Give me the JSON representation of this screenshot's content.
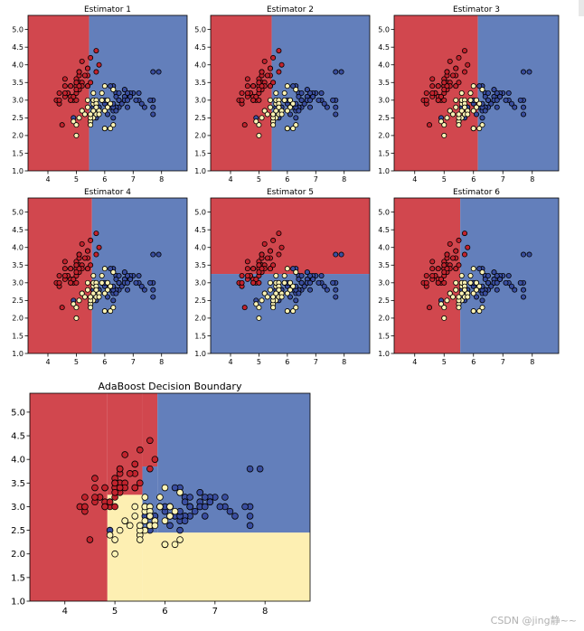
{
  "colors": {
    "region_red": "#d1474e",
    "region_blue": "#637fbb",
    "region_yellow": "#fdefb2",
    "point_red": "#c2232d",
    "point_blue": "#3a4ea0",
    "point_yellow": "#fcf3b5",
    "edge": "#000000"
  },
  "watermark": "CSDN @jing静~~",
  "chart_data": [
    {
      "type": "scatter",
      "title": "Estimator 1",
      "xlim": [
        3.3,
        8.9
      ],
      "ylim": [
        1.0,
        5.4
      ],
      "xticks": [
        4,
        5,
        6,
        7,
        8
      ],
      "yticks": [
        1.0,
        1.5,
        2.0,
        2.5,
        3.0,
        3.5,
        4.0,
        4.5,
        5.0
      ],
      "regions": [
        {
          "class": "red",
          "x": [
            3.3,
            5.45
          ],
          "y": [
            1.0,
            5.4
          ]
        },
        {
          "class": "blue",
          "x": [
            5.45,
            8.9
          ],
          "y": [
            1.0,
            5.4
          ]
        }
      ]
    },
    {
      "type": "scatter",
      "title": "Estimator 2",
      "xlim": [
        3.3,
        8.9
      ],
      "ylim": [
        1.0,
        5.4
      ],
      "xticks": [
        4,
        5,
        6,
        7,
        8
      ],
      "yticks": [
        1.0,
        1.5,
        2.0,
        2.5,
        3.0,
        3.5,
        4.0,
        4.5,
        5.0
      ],
      "regions": [
        {
          "class": "red",
          "x": [
            3.3,
            5.45
          ],
          "y": [
            1.0,
            5.4
          ]
        },
        {
          "class": "blue",
          "x": [
            5.45,
            8.9
          ],
          "y": [
            1.0,
            5.4
          ]
        }
      ]
    },
    {
      "type": "scatter",
      "title": "Estimator 3",
      "xlim": [
        3.3,
        8.9
      ],
      "ylim": [
        1.0,
        5.4
      ],
      "xticks": [
        4,
        5,
        6,
        7,
        8
      ],
      "yticks": [
        1.0,
        1.5,
        2.0,
        2.5,
        3.0,
        3.5,
        4.0,
        4.5,
        5.0
      ],
      "regions": [
        {
          "class": "red",
          "x": [
            3.3,
            6.15
          ],
          "y": [
            1.0,
            5.4
          ]
        },
        {
          "class": "blue",
          "x": [
            6.15,
            8.9
          ],
          "y": [
            1.0,
            5.4
          ]
        }
      ]
    },
    {
      "type": "scatter",
      "title": "Estimator 4",
      "xlim": [
        3.3,
        8.9
      ],
      "ylim": [
        1.0,
        5.4
      ],
      "xticks": [
        4,
        5,
        6,
        7,
        8
      ],
      "yticks": [
        1.0,
        1.5,
        2.0,
        2.5,
        3.0,
        3.5,
        4.0,
        4.5,
        5.0
      ],
      "regions": [
        {
          "class": "red",
          "x": [
            3.3,
            5.55
          ],
          "y": [
            1.0,
            5.4
          ]
        },
        {
          "class": "blue",
          "x": [
            5.55,
            8.9
          ],
          "y": [
            1.0,
            5.4
          ]
        }
      ]
    },
    {
      "type": "scatter",
      "title": "Estimator 5",
      "xlim": [
        3.3,
        8.9
      ],
      "ylim": [
        1.0,
        5.4
      ],
      "xticks": [
        4,
        5,
        6,
        7,
        8
      ],
      "yticks": [
        1.0,
        1.5,
        2.0,
        2.5,
        3.0,
        3.5,
        4.0,
        4.5,
        5.0
      ],
      "regions": [
        {
          "class": "red",
          "x": [
            3.3,
            8.9
          ],
          "y": [
            3.25,
            5.4
          ]
        },
        {
          "class": "blue",
          "x": [
            3.3,
            8.9
          ],
          "y": [
            1.0,
            3.25
          ]
        }
      ]
    },
    {
      "type": "scatter",
      "title": "Estimator 6",
      "xlim": [
        3.3,
        8.9
      ],
      "ylim": [
        1.0,
        5.4
      ],
      "xticks": [
        4,
        5,
        6,
        7,
        8
      ],
      "yticks": [
        1.0,
        1.5,
        2.0,
        2.5,
        3.0,
        3.5,
        4.0,
        4.5,
        5.0
      ],
      "regions": [
        {
          "class": "red",
          "x": [
            3.3,
            5.55
          ],
          "y": [
            1.0,
            5.4
          ]
        },
        {
          "class": "blue",
          "x": [
            5.55,
            8.9
          ],
          "y": [
            1.0,
            5.4
          ]
        }
      ]
    },
    {
      "type": "scatter",
      "title": "AdaBoost Decision Boundary",
      "xlim": [
        3.3,
        8.9
      ],
      "ylim": [
        1.0,
        5.4
      ],
      "xticks": [
        4,
        5,
        6,
        7,
        8
      ],
      "yticks": [
        1.0,
        1.5,
        2.0,
        2.5,
        3.0,
        3.5,
        4.0,
        4.5,
        5.0
      ],
      "regions": [
        {
          "class": "red",
          "x": [
            3.3,
            4.85
          ],
          "y": [
            1.0,
            5.4
          ]
        },
        {
          "class": "red",
          "x": [
            4.85,
            5.55
          ],
          "y": [
            3.25,
            5.4
          ]
        },
        {
          "class": "red",
          "x": [
            5.55,
            5.85
          ],
          "y": [
            3.85,
            5.4
          ]
        },
        {
          "class": "blue",
          "x": [
            5.85,
            8.9
          ],
          "y": [
            2.45,
            5.4
          ]
        },
        {
          "class": "blue",
          "x": [
            5.55,
            5.85
          ],
          "y": [
            2.45,
            3.85
          ]
        },
        {
          "class": "yellow",
          "x": [
            4.85,
            5.55
          ],
          "y": [
            1.0,
            3.25
          ]
        },
        {
          "class": "yellow",
          "x": [
            5.55,
            8.9
          ],
          "y": [
            1.0,
            2.45
          ]
        }
      ]
    }
  ],
  "samples": [
    {
      "x": 5.1,
      "y": 3.5,
      "c": "red"
    },
    {
      "x": 4.9,
      "y": 3.0,
      "c": "red"
    },
    {
      "x": 4.7,
      "y": 3.2,
      "c": "red"
    },
    {
      "x": 4.6,
      "y": 3.1,
      "c": "red"
    },
    {
      "x": 5.0,
      "y": 3.6,
      "c": "red"
    },
    {
      "x": 5.4,
      "y": 3.9,
      "c": "red"
    },
    {
      "x": 4.6,
      "y": 3.4,
      "c": "red"
    },
    {
      "x": 5.0,
      "y": 3.4,
      "c": "red"
    },
    {
      "x": 4.4,
      "y": 2.9,
      "c": "red"
    },
    {
      "x": 4.9,
      "y": 3.1,
      "c": "red"
    },
    {
      "x": 5.4,
      "y": 3.7,
      "c": "red"
    },
    {
      "x": 4.8,
      "y": 3.4,
      "c": "red"
    },
    {
      "x": 4.8,
      "y": 3.0,
      "c": "red"
    },
    {
      "x": 4.3,
      "y": 3.0,
      "c": "red"
    },
    {
      "x": 5.8,
      "y": 4.0,
      "c": "red"
    },
    {
      "x": 5.7,
      "y": 4.4,
      "c": "red"
    },
    {
      "x": 5.4,
      "y": 3.9,
      "c": "red"
    },
    {
      "x": 5.1,
      "y": 3.5,
      "c": "red"
    },
    {
      "x": 5.7,
      "y": 3.8,
      "c": "red"
    },
    {
      "x": 5.1,
      "y": 3.8,
      "c": "red"
    },
    {
      "x": 5.4,
      "y": 3.4,
      "c": "red"
    },
    {
      "x": 5.1,
      "y": 3.7,
      "c": "red"
    },
    {
      "x": 4.6,
      "y": 3.6,
      "c": "red"
    },
    {
      "x": 5.1,
      "y": 3.3,
      "c": "red"
    },
    {
      "x": 4.8,
      "y": 3.4,
      "c": "red"
    },
    {
      "x": 5.0,
      "y": 3.0,
      "c": "red"
    },
    {
      "x": 5.0,
      "y": 3.4,
      "c": "red"
    },
    {
      "x": 5.2,
      "y": 3.5,
      "c": "red"
    },
    {
      "x": 5.2,
      "y": 3.4,
      "c": "red"
    },
    {
      "x": 4.7,
      "y": 3.2,
      "c": "red"
    },
    {
      "x": 4.8,
      "y": 3.1,
      "c": "red"
    },
    {
      "x": 5.4,
      "y": 3.4,
      "c": "red"
    },
    {
      "x": 5.2,
      "y": 4.1,
      "c": "red"
    },
    {
      "x": 5.5,
      "y": 4.2,
      "c": "red"
    },
    {
      "x": 4.9,
      "y": 3.1,
      "c": "red"
    },
    {
      "x": 5.0,
      "y": 3.2,
      "c": "red"
    },
    {
      "x": 5.5,
      "y": 3.5,
      "c": "red"
    },
    {
      "x": 4.4,
      "y": 3.0,
      "c": "red"
    },
    {
      "x": 5.1,
      "y": 3.4,
      "c": "red"
    },
    {
      "x": 5.0,
      "y": 3.5,
      "c": "red"
    },
    {
      "x": 4.5,
      "y": 2.3,
      "c": "red"
    },
    {
      "x": 4.4,
      "y": 3.2,
      "c": "red"
    },
    {
      "x": 5.0,
      "y": 3.5,
      "c": "red"
    },
    {
      "x": 5.1,
      "y": 3.8,
      "c": "red"
    },
    {
      "x": 4.8,
      "y": 3.0,
      "c": "red"
    },
    {
      "x": 5.1,
      "y": 3.8,
      "c": "red"
    },
    {
      "x": 4.6,
      "y": 3.2,
      "c": "red"
    },
    {
      "x": 5.3,
      "y": 3.7,
      "c": "red"
    },
    {
      "x": 5.0,
      "y": 3.3,
      "c": "red"
    },
    {
      "x": 7.0,
      "y": 3.2,
      "c": "blue"
    },
    {
      "x": 6.4,
      "y": 3.2,
      "c": "blue"
    },
    {
      "x": 6.9,
      "y": 3.1,
      "c": "blue"
    },
    {
      "x": 6.5,
      "y": 2.8,
      "c": "blue"
    },
    {
      "x": 6.3,
      "y": 3.3,
      "c": "blue"
    },
    {
      "x": 6.7,
      "y": 3.1,
      "c": "blue"
    },
    {
      "x": 6.1,
      "y": 2.8,
      "c": "blue"
    },
    {
      "x": 6.6,
      "y": 2.9,
      "c": "blue"
    },
    {
      "x": 6.8,
      "y": 2.8,
      "c": "blue"
    },
    {
      "x": 6.7,
      "y": 3.0,
      "c": "blue"
    },
    {
      "x": 6.0,
      "y": 2.9,
      "c": "blue"
    },
    {
      "x": 6.1,
      "y": 3.0,
      "c": "blue"
    },
    {
      "x": 6.3,
      "y": 2.5,
      "c": "blue"
    },
    {
      "x": 5.8,
      "y": 2.8,
      "c": "blue"
    },
    {
      "x": 6.4,
      "y": 3.2,
      "c": "blue"
    },
    {
      "x": 6.5,
      "y": 3.0,
      "c": "blue"
    },
    {
      "x": 7.7,
      "y": 3.8,
      "c": "blue"
    },
    {
      "x": 7.7,
      "y": 2.6,
      "c": "blue"
    },
    {
      "x": 6.0,
      "y": 2.2,
      "c": "blue"
    },
    {
      "x": 6.9,
      "y": 3.2,
      "c": "blue"
    },
    {
      "x": 5.6,
      "y": 2.8,
      "c": "blue"
    },
    {
      "x": 7.7,
      "y": 2.8,
      "c": "blue"
    },
    {
      "x": 6.3,
      "y": 2.7,
      "c": "blue"
    },
    {
      "x": 6.7,
      "y": 3.3,
      "c": "blue"
    },
    {
      "x": 7.2,
      "y": 3.2,
      "c": "blue"
    },
    {
      "x": 6.2,
      "y": 2.8,
      "c": "blue"
    },
    {
      "x": 6.1,
      "y": 3.0,
      "c": "blue"
    },
    {
      "x": 6.4,
      "y": 2.8,
      "c": "blue"
    },
    {
      "x": 7.2,
      "y": 3.0,
      "c": "blue"
    },
    {
      "x": 7.4,
      "y": 2.8,
      "c": "blue"
    },
    {
      "x": 7.9,
      "y": 3.8,
      "c": "blue"
    },
    {
      "x": 6.4,
      "y": 2.8,
      "c": "blue"
    },
    {
      "x": 6.3,
      "y": 2.8,
      "c": "blue"
    },
    {
      "x": 6.1,
      "y": 2.6,
      "c": "blue"
    },
    {
      "x": 7.7,
      "y": 3.0,
      "c": "blue"
    },
    {
      "x": 6.3,
      "y": 3.4,
      "c": "blue"
    },
    {
      "x": 6.4,
      "y": 3.1,
      "c": "blue"
    },
    {
      "x": 6.0,
      "y": 3.0,
      "c": "blue"
    },
    {
      "x": 6.9,
      "y": 3.1,
      "c": "blue"
    },
    {
      "x": 6.7,
      "y": 3.1,
      "c": "blue"
    },
    {
      "x": 6.9,
      "y": 3.1,
      "c": "blue"
    },
    {
      "x": 5.8,
      "y": 2.7,
      "c": "blue"
    },
    {
      "x": 6.8,
      "y": 3.2,
      "c": "blue"
    },
    {
      "x": 6.7,
      "y": 3.3,
      "c": "blue"
    },
    {
      "x": 6.7,
      "y": 3.0,
      "c": "blue"
    },
    {
      "x": 6.5,
      "y": 3.0,
      "c": "blue"
    },
    {
      "x": 6.2,
      "y": 3.4,
      "c": "blue"
    },
    {
      "x": 5.9,
      "y": 3.0,
      "c": "blue"
    },
    {
      "x": 7.3,
      "y": 2.9,
      "c": "blue"
    },
    {
      "x": 7.6,
      "y": 3.0,
      "c": "blue"
    },
    {
      "x": 7.1,
      "y": 3.0,
      "c": "blue"
    },
    {
      "x": 6.5,
      "y": 3.2,
      "c": "blue"
    },
    {
      "x": 6.8,
      "y": 3.0,
      "c": "blue"
    },
    {
      "x": 5.7,
      "y": 2.5,
      "c": "blue"
    },
    {
      "x": 5.8,
      "y": 2.8,
      "c": "blue"
    },
    {
      "x": 6.4,
      "y": 2.7,
      "c": "blue"
    },
    {
      "x": 6.0,
      "y": 2.2,
      "c": "blue"
    },
    {
      "x": 6.3,
      "y": 2.9,
      "c": "blue"
    },
    {
      "x": 6.5,
      "y": 3.0,
      "c": "blue"
    },
    {
      "x": 4.9,
      "y": 2.5,
      "c": "blue"
    },
    {
      "x": 5.7,
      "y": 2.8,
      "c": "yellow"
    },
    {
      "x": 6.3,
      "y": 3.3,
      "c": "yellow"
    },
    {
      "x": 4.9,
      "y": 2.4,
      "c": "yellow"
    },
    {
      "x": 5.2,
      "y": 2.7,
      "c": "yellow"
    },
    {
      "x": 5.0,
      "y": 2.0,
      "c": "yellow"
    },
    {
      "x": 5.9,
      "y": 3.0,
      "c": "yellow"
    },
    {
      "x": 6.0,
      "y": 2.2,
      "c": "yellow"
    },
    {
      "x": 5.6,
      "y": 2.9,
      "c": "yellow"
    },
    {
      "x": 5.6,
      "y": 3.0,
      "c": "yellow"
    },
    {
      "x": 5.8,
      "y": 2.7,
      "c": "yellow"
    },
    {
      "x": 6.2,
      "y": 2.2,
      "c": "yellow"
    },
    {
      "x": 5.6,
      "y": 2.5,
      "c": "yellow"
    },
    {
      "x": 5.9,
      "y": 3.2,
      "c": "yellow"
    },
    {
      "x": 6.1,
      "y": 2.8,
      "c": "yellow"
    },
    {
      "x": 5.7,
      "y": 2.6,
      "c": "yellow"
    },
    {
      "x": 5.5,
      "y": 2.4,
      "c": "yellow"
    },
    {
      "x": 5.5,
      "y": 2.4,
      "c": "yellow"
    },
    {
      "x": 5.8,
      "y": 2.7,
      "c": "yellow"
    },
    {
      "x": 6.0,
      "y": 2.7,
      "c": "yellow"
    },
    {
      "x": 5.4,
      "y": 3.0,
      "c": "yellow"
    },
    {
      "x": 6.0,
      "y": 3.4,
      "c": "yellow"
    },
    {
      "x": 6.3,
      "y": 2.3,
      "c": "yellow"
    },
    {
      "x": 5.6,
      "y": 3.0,
      "c": "yellow"
    },
    {
      "x": 5.5,
      "y": 2.5,
      "c": "yellow"
    },
    {
      "x": 5.5,
      "y": 2.6,
      "c": "yellow"
    },
    {
      "x": 6.1,
      "y": 3.0,
      "c": "yellow"
    },
    {
      "x": 5.8,
      "y": 2.6,
      "c": "yellow"
    },
    {
      "x": 5.0,
      "y": 2.3,
      "c": "yellow"
    },
    {
      "x": 5.6,
      "y": 2.7,
      "c": "yellow"
    },
    {
      "x": 5.7,
      "y": 3.0,
      "c": "yellow"
    },
    {
      "x": 5.7,
      "y": 2.9,
      "c": "yellow"
    },
    {
      "x": 6.2,
      "y": 2.9,
      "c": "yellow"
    },
    {
      "x": 5.1,
      "y": 2.5,
      "c": "yellow"
    },
    {
      "x": 5.7,
      "y": 2.8,
      "c": "yellow"
    },
    {
      "x": 5.5,
      "y": 2.3,
      "c": "yellow"
    },
    {
      "x": 5.2,
      "y": 2.7,
      "c": "yellow"
    },
    {
      "x": 5.6,
      "y": 3.2,
      "c": "yellow"
    },
    {
      "x": 5.9,
      "y": 3.0,
      "c": "yellow"
    },
    {
      "x": 5.4,
      "y": 2.8,
      "c": "yellow"
    },
    {
      "x": 5.3,
      "y": 2.6,
      "c": "yellow"
    }
  ]
}
